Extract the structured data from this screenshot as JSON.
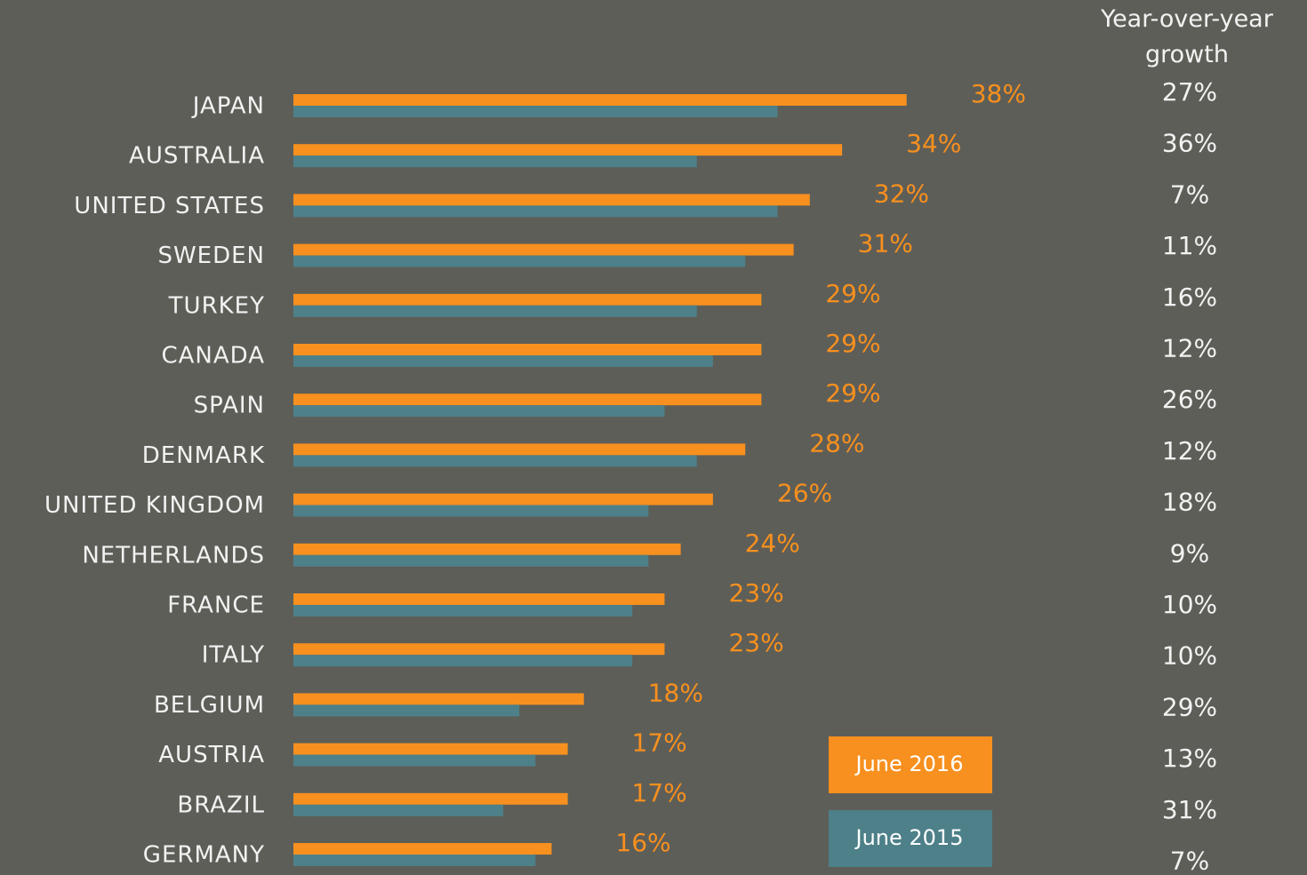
{
  "chart_data": {
    "type": "hbar",
    "categories": [
      "JAPAN",
      "AUSTRALIA",
      "UNITED STATES",
      "SWEDEN",
      "TURKEY",
      "CANADA",
      "SPAIN",
      "DENMARK",
      "UNITED KINGDOM",
      "NETHERLANDS",
      "FRANCE",
      "ITALY",
      "BELGIUM",
      "AUSTRIA",
      "BRAZIL",
      "GERMANY"
    ],
    "series": [
      {
        "name": "June 2016",
        "color": "#f7901e",
        "values": [
          38,
          34,
          32,
          31,
          29,
          29,
          29,
          28,
          26,
          24,
          23,
          23,
          18,
          17,
          17,
          16
        ],
        "value_labels": [
          "38%",
          "34%",
          "32%",
          "31%",
          "29%",
          "29%",
          "29%",
          "28%",
          "26%",
          "24%",
          "23%",
          "23%",
          "18%",
          "17%",
          "17%",
          "16%"
        ]
      },
      {
        "name": "June 2015",
        "color": "#4d8089",
        "values": [
          30,
          25,
          30,
          28,
          25,
          26,
          23,
          25,
          22,
          22,
          21,
          21,
          14,
          15,
          13,
          15
        ]
      }
    ],
    "xlim": [
      0,
      40
    ],
    "growth_title": "Year-over-year growth",
    "growth": {
      "values": [
        27,
        36,
        7,
        11,
        16,
        12,
        26,
        12,
        18,
        9,
        10,
        10,
        29,
        13,
        31,
        7
      ],
      "value_labels": [
        "27%",
        "36%",
        "7%",
        "11%",
        "16%",
        "12%",
        "26%",
        "12%",
        "18%",
        "9%",
        "10%",
        "10%",
        "29%",
        "13%",
        "31%",
        "7%"
      ]
    }
  }
}
